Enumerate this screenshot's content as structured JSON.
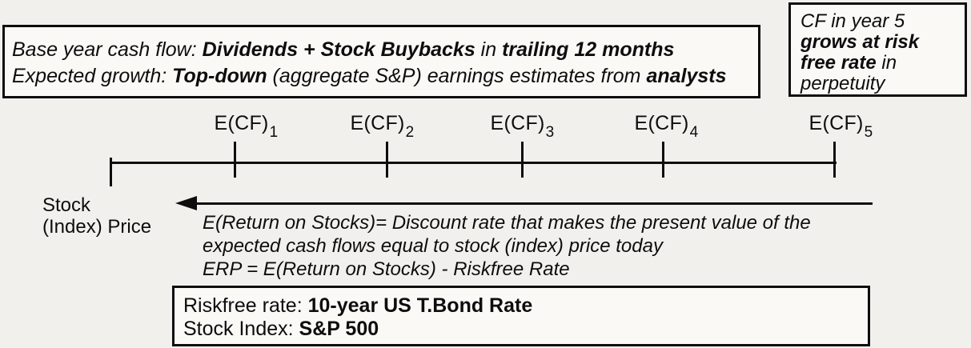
{
  "colors": {
    "background": "#f2f0ed",
    "box_fill": "#faf9f6",
    "ink": "#0d0d0d"
  },
  "assumptions_box": {
    "line1_prefix": "Base year cash flow: ",
    "line1_bold1": "Dividends + Stock Buybacks",
    "line1_mid": " in ",
    "line1_bold2": "trailing 12 months",
    "line2_prefix": "Expected growth: ",
    "line2_bold1": "Top-down",
    "line2_mid": " (aggregate S&P) earnings estimates from ",
    "line2_bold2": "analysts"
  },
  "terminal_box": {
    "prefix": "CF in year 5 ",
    "bold": "grows at risk free rate",
    "suffix": " in perpetuity"
  },
  "timeline": {
    "labels": [
      {
        "base": "E(CF)",
        "sub": "1"
      },
      {
        "base": "E(CF)",
        "sub": "2"
      },
      {
        "base": "E(CF)",
        "sub": "3"
      },
      {
        "base": "E(CF)",
        "sub": "4"
      },
      {
        "base": "E(CF)",
        "sub": "5"
      }
    ]
  },
  "price_label": {
    "line1": "Stock",
    "line2": "(Index) Price"
  },
  "discount_text": {
    "line1": "E(Return on Stocks)= Discount rate that makes the present value of the",
    "line2": "expected cash flows equal to stock (index) price today",
    "line3": "ERP = E(Return on Stocks) - Riskfree Rate"
  },
  "riskfree_box": {
    "line1_label": "Riskfree rate: ",
    "line1_value": "10-year US T.Bond Rate",
    "line2_label": "Stock Index: ",
    "line2_value": "S&P 500"
  }
}
